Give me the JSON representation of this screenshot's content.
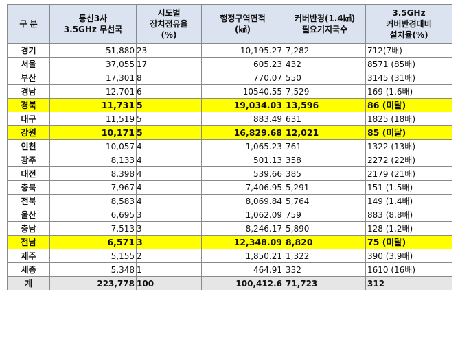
{
  "headers": {
    "region": "구 분",
    "stations": [
      "통신3사",
      "3.5GHz 무선국"
    ],
    "share": [
      "시도별",
      "장치점유율",
      "(%)"
    ],
    "area": [
      "행정구역면적",
      "(㎢)"
    ],
    "required": [
      "커버반경(1.4㎢)",
      "필요기지국수"
    ],
    "ratio": [
      "3.5GHz",
      "커버반경대비",
      "설치율(%)"
    ]
  },
  "rows": [
    {
      "region": "경기",
      "stations": "51,880",
      "share": "23",
      "area": "10,195.27",
      "required": "7,282",
      "ratio": "712(7배)",
      "highlight": false
    },
    {
      "region": "서울",
      "stations": "37,055",
      "share": "17",
      "area": "605.23",
      "required": "432",
      "ratio": "8571 (85배)",
      "highlight": false
    },
    {
      "region": "부산",
      "stations": "17,301",
      "share": "8",
      "area": "770.07",
      "required": "550",
      "ratio": "3145 (31배)",
      "highlight": false
    },
    {
      "region": "경남",
      "stations": "12,701",
      "share": "6",
      "area": "10540.55",
      "required": "7,529",
      "ratio": "169 (1.6배)",
      "highlight": false
    },
    {
      "region": "경북",
      "stations": "11,731",
      "share": "5",
      "area": "19,034.03",
      "required": "13,596",
      "ratio": "86 (미달)",
      "highlight": true
    },
    {
      "region": "대구",
      "stations": "11,519",
      "share": "5",
      "area": "883.49",
      "required": "631",
      "ratio": "1825 (18배)",
      "highlight": false
    },
    {
      "region": "강원",
      "stations": "10,171",
      "share": "5",
      "area": "16,829.68",
      "required": "12,021",
      "ratio": "85 (미달)",
      "highlight": true
    },
    {
      "region": "인천",
      "stations": "10,057",
      "share": "4",
      "area": "1,065.23",
      "required": "761",
      "ratio": "1322 (13배)",
      "highlight": false
    },
    {
      "region": "광주",
      "stations": "8,133",
      "share": "4",
      "area": "501.13",
      "required": "358",
      "ratio": "2272 (22배)",
      "highlight": false
    },
    {
      "region": "대전",
      "stations": "8,398",
      "share": "4",
      "area": "539.66",
      "required": "385",
      "ratio": "2179 (21배)",
      "highlight": false
    },
    {
      "region": "충북",
      "stations": "7,967",
      "share": "4",
      "area": "7,406.95",
      "required": "5,291",
      "ratio": "151 (1.5배)",
      "highlight": false
    },
    {
      "region": "전북",
      "stations": "8,583",
      "share": "4",
      "area": "8,069.84",
      "required": "5,764",
      "ratio": "149 (1.4배)",
      "highlight": false
    },
    {
      "region": "울산",
      "stations": "6,695",
      "share": "3",
      "area": "1,062.09",
      "required": "759",
      "ratio": "883 (8.8배)",
      "highlight": false
    },
    {
      "region": "충남",
      "stations": "7,513",
      "share": "3",
      "area": "8,246.17",
      "required": "5,890",
      "ratio": "128 (1.2배)",
      "highlight": false
    },
    {
      "region": "전남",
      "stations": "6,571",
      "share": "3",
      "area": "12,348.09",
      "required": "8,820",
      "ratio": "75 (미달)",
      "highlight": true
    },
    {
      "region": "제주",
      "stations": "5,155",
      "share": "2",
      "area": "1,850.21",
      "required": "1,322",
      "ratio": "390 (3.9배)",
      "highlight": false
    },
    {
      "region": "세종",
      "stations": "5,348",
      "share": "1",
      "area": "464.91",
      "required": "332",
      "ratio": "1610 (16배)",
      "highlight": false
    }
  ],
  "total": {
    "region": "계",
    "stations": "223,778",
    "share": "100",
    "area": "100,412.6",
    "required": "71,723",
    "ratio": "312"
  },
  "colors": {
    "header_bg": "#dbe3f1",
    "highlight_bg": "#ffff00",
    "total_bg": "#e6e6e6",
    "border": "#8a8a8a"
  }
}
